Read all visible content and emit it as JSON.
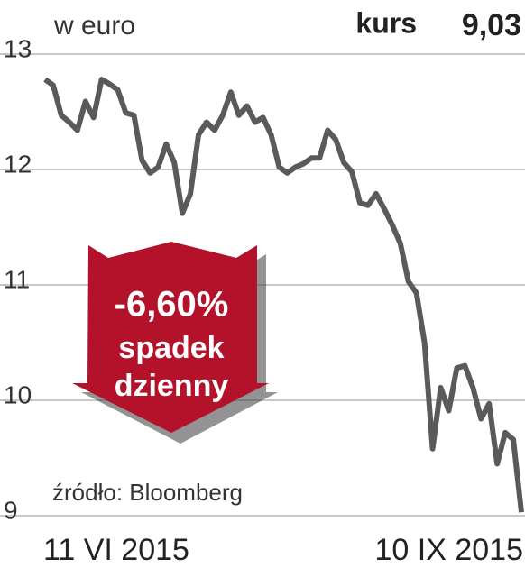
{
  "chart_data": {
    "type": "line",
    "ylabel": "w euro",
    "current_label": "kurs",
    "current": {
      "value": 9.03,
      "label": "9,03"
    },
    "change": {
      "value": -6.6,
      "label": "-6,60%"
    },
    "change_text": [
      "spadek",
      "dzienny"
    ],
    "source": "źródło: Bloomberg",
    "categories": [
      "11 VI 2015",
      null,
      null,
      null,
      null,
      null,
      null,
      null,
      null,
      null,
      null,
      null,
      null,
      null,
      null,
      null,
      null,
      null,
      null,
      null,
      null,
      null,
      null,
      null,
      null,
      null,
      null,
      null,
      null,
      null,
      null,
      null,
      null,
      null,
      null,
      null,
      null,
      null,
      null,
      null,
      null,
      null,
      null,
      null,
      null,
      null,
      null,
      null,
      null,
      null,
      null,
      null,
      null,
      null,
      null,
      null,
      null,
      null,
      null,
      "10 IX 2015"
    ],
    "values": [
      12.78,
      12.73,
      12.47,
      12.41,
      12.34,
      12.59,
      12.45,
      12.78,
      12.74,
      12.69,
      12.49,
      12.47,
      12.08,
      11.97,
      12.02,
      12.22,
      12.06,
      11.62,
      11.79,
      12.3,
      12.41,
      12.34,
      12.47,
      12.67,
      12.47,
      12.55,
      12.41,
      12.45,
      12.3,
      12.02,
      11.97,
      12.02,
      12.05,
      12.1,
      12.1,
      12.34,
      12.26,
      12.06,
      11.98,
      11.71,
      11.69,
      11.79,
      11.66,
      11.52,
      11.36,
      11.03,
      10.93,
      10.5,
      9.58,
      10.11,
      9.91,
      10.28,
      10.3,
      10.11,
      9.84,
      9.97,
      9.45,
      9.72,
      9.66,
      9.03
    ],
    "color": "#5a5a5a",
    "ylim": [
      9,
      13
    ],
    "yticks": [
      9,
      10,
      11,
      12,
      13
    ],
    "grid": true
  }
}
